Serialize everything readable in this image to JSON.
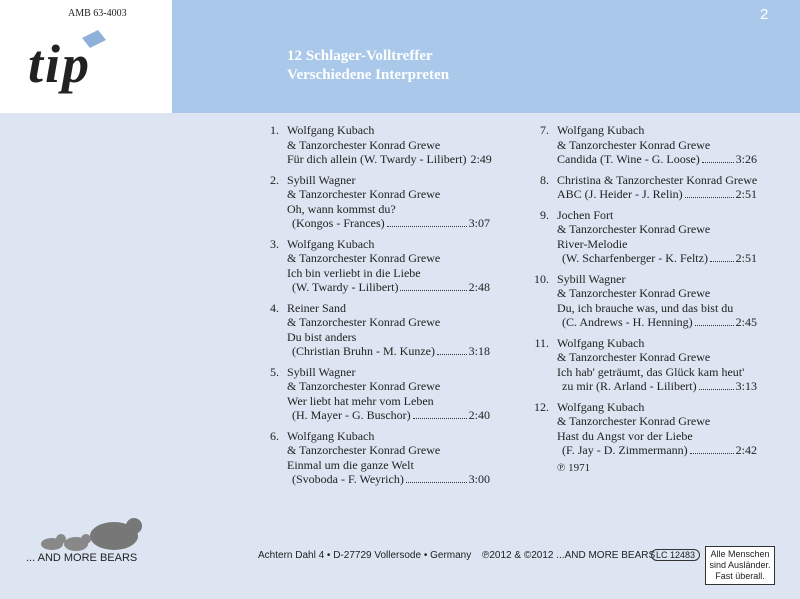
{
  "header": {
    "catalog": "AMB 63-4003",
    "logo": "tip",
    "page": "2",
    "title": "12 Schlager-Volltreffer",
    "subtitle": "Verschiedene Interpreten"
  },
  "tracks": [
    {
      "number": "1.",
      "lines": [
        "Wolfgang Kubach",
        "& Tanzorchester Konrad Grewe",
        "Für dich allein (W. Twardy - Lilibert)"
      ],
      "time": "2:49"
    },
    {
      "number": "2.",
      "lines": [
        "Sybill Wagner",
        "& Tanzorchester Konrad Grewe",
        "Oh, wann kommst du?",
        "(Kongos - Frances)"
      ],
      "time": "3:07"
    },
    {
      "number": "3.",
      "lines": [
        "Wolfgang Kubach",
        "& Tanzorchester Konrad Grewe",
        "Ich bin verliebt in die Liebe",
        "(W. Twardy - Lilibert)"
      ],
      "time": "2:48"
    },
    {
      "number": "4.",
      "lines": [
        "Reiner Sand",
        "& Tanzorchester Konrad Grewe",
        "Du bist anders",
        "(Christian Bruhn - M. Kunze)"
      ],
      "time": "3:18"
    },
    {
      "number": "5.",
      "lines": [
        "Sybill Wagner",
        "& Tanzorchester Konrad Grewe",
        "Wer liebt hat mehr vom Leben",
        "(H. Mayer - G. Buschor)"
      ],
      "time": "2:40"
    },
    {
      "number": "6.",
      "lines": [
        "Wolfgang Kubach",
        "& Tanzorchester Konrad Grewe",
        "Einmal um die ganze Welt",
        "(Svoboda - F. Weyrich)"
      ],
      "time": "3:00"
    },
    {
      "number": "7.",
      "lines": [
        "Wolfgang Kubach",
        "& Tanzorchester Konrad Grewe",
        "Candida (T. Wine - G. Loose)"
      ],
      "time": "3:26"
    },
    {
      "number": "8.",
      "lines": [
        "Christina & Tanzorchester Konrad Grewe",
        "ABC (J. Heider - J. Relin)"
      ],
      "time": "2:51"
    },
    {
      "number": "9.",
      "lines": [
        "Jochen Fort",
        "& Tanzorchester Konrad Grewe",
        "River-Melodie",
        "(W. Scharfenberger - K. Feltz)"
      ],
      "time": "2:51"
    },
    {
      "number": "10.",
      "lines": [
        "Sybill Wagner",
        "& Tanzorchester Konrad Grewe",
        "Du, ich brauche was, und das bist du",
        "(C. Andrews - H. Henning)"
      ],
      "time": "2:45"
    },
    {
      "number": "11.",
      "lines": [
        "Wolfgang Kubach",
        "& Tanzorchester Konrad Grewe",
        "Ich hab' geträumt, das Glück kam heut'",
        "zu mir (R. Arland - Lilibert)"
      ],
      "time": "3:13"
    },
    {
      "number": "12.",
      "lines": [
        "Wolfgang Kubach",
        "& Tanzorchester Konrad Grewe",
        "Hast du Angst vor der Liebe",
        "(F. Jay - D. Zimmermann)"
      ],
      "time": "2:42"
    }
  ],
  "phonogram": "℗ 1971",
  "footer": {
    "label": "... AND MORE BEARS",
    "address": "Achtern Dahl 4 • D-27729 Vollersode • Germany",
    "copyright": "℗2012 & ©2012 ...AND MORE BEARS",
    "lc": "LC 12483",
    "slogan": [
      "Alle Menschen",
      "sind Ausländer.",
      "Fast überall."
    ]
  }
}
